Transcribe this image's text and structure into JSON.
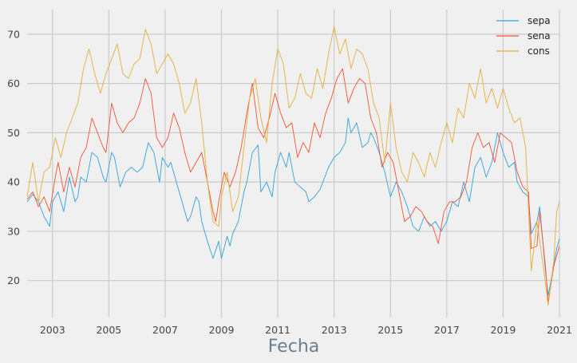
{
  "chart_data": {
    "type": "line",
    "title": "",
    "xlabel": "Fecha",
    "ylabel": "",
    "xlim": [
      2002.1,
      2021.0
    ],
    "ylim": [
      12.5,
      75
    ],
    "grid": true,
    "legend": "top-right",
    "xticks": [
      2003,
      2005,
      2007,
      2009,
      2011,
      2013,
      2015,
      2017,
      2019,
      2021
    ],
    "yticks": [
      20,
      30,
      40,
      50,
      60,
      70
    ],
    "series": [
      {
        "name": "sepa",
        "color": "#30a2da",
        "points": [
          [
            2002.1,
            36
          ],
          [
            2002.3,
            37.5
          ],
          [
            2002.5,
            36
          ],
          [
            2002.7,
            33
          ],
          [
            2002.9,
            31
          ],
          [
            2003.0,
            36
          ],
          [
            2003.2,
            38
          ],
          [
            2003.4,
            34
          ],
          [
            2003.6,
            41
          ],
          [
            2003.8,
            36
          ],
          [
            2003.9,
            37
          ],
          [
            2004.0,
            41
          ],
          [
            2004.2,
            40
          ],
          [
            2004.4,
            46
          ],
          [
            2004.6,
            45
          ],
          [
            2004.8,
            41
          ],
          [
            2004.9,
            40
          ],
          [
            2005.1,
            46
          ],
          [
            2005.2,
            45
          ],
          [
            2005.4,
            39
          ],
          [
            2005.6,
            42
          ],
          [
            2005.8,
            43
          ],
          [
            2006.0,
            42
          ],
          [
            2006.2,
            43
          ],
          [
            2006.4,
            48
          ],
          [
            2006.6,
            46
          ],
          [
            2006.8,
            40
          ],
          [
            2006.9,
            45
          ],
          [
            2007.1,
            43
          ],
          [
            2007.2,
            44
          ],
          [
            2007.4,
            40
          ],
          [
            2007.6,
            36
          ],
          [
            2007.8,
            32
          ],
          [
            2007.9,
            33
          ],
          [
            2008.1,
            37
          ],
          [
            2008.2,
            36
          ],
          [
            2008.3,
            32
          ],
          [
            2008.5,
            28
          ],
          [
            2008.7,
            24.5
          ],
          [
            2008.9,
            28
          ],
          [
            2009.0,
            24.5
          ],
          [
            2009.2,
            29
          ],
          [
            2009.3,
            27
          ],
          [
            2009.4,
            29.5
          ],
          [
            2009.6,
            32
          ],
          [
            2009.8,
            38
          ],
          [
            2009.9,
            40
          ],
          [
            2010.1,
            46
          ],
          [
            2010.3,
            47.5
          ],
          [
            2010.4,
            38
          ],
          [
            2010.6,
            40
          ],
          [
            2010.8,
            37
          ],
          [
            2010.9,
            42
          ],
          [
            2011.1,
            46
          ],
          [
            2011.3,
            43
          ],
          [
            2011.4,
            46
          ],
          [
            2011.6,
            40
          ],
          [
            2011.8,
            39
          ],
          [
            2012.0,
            38
          ],
          [
            2012.1,
            36
          ],
          [
            2012.3,
            37
          ],
          [
            2012.5,
            38.5
          ],
          [
            2012.6,
            40
          ],
          [
            2012.8,
            43
          ],
          [
            2013.0,
            45
          ],
          [
            2013.2,
            46
          ],
          [
            2013.4,
            48
          ],
          [
            2013.5,
            53
          ],
          [
            2013.6,
            50
          ],
          [
            2013.8,
            52
          ],
          [
            2014.0,
            47
          ],
          [
            2014.2,
            48
          ],
          [
            2014.3,
            50
          ],
          [
            2014.4,
            49
          ],
          [
            2014.6,
            46
          ],
          [
            2014.8,
            42
          ],
          [
            2015.0,
            37
          ],
          [
            2015.2,
            40
          ],
          [
            2015.4,
            38
          ],
          [
            2015.6,
            35
          ],
          [
            2015.8,
            31
          ],
          [
            2016.0,
            30
          ],
          [
            2016.2,
            33
          ],
          [
            2016.4,
            31
          ],
          [
            2016.6,
            32
          ],
          [
            2016.8,
            30
          ],
          [
            2017.0,
            32
          ],
          [
            2017.2,
            36
          ],
          [
            2017.4,
            35
          ],
          [
            2017.6,
            40
          ],
          [
            2017.8,
            36
          ],
          [
            2018.0,
            43
          ],
          [
            2018.2,
            45
          ],
          [
            2018.4,
            41
          ],
          [
            2018.6,
            44
          ],
          [
            2018.8,
            50
          ],
          [
            2019.0,
            46
          ],
          [
            2019.2,
            43
          ],
          [
            2019.4,
            44
          ],
          [
            2019.5,
            40
          ],
          [
            2019.7,
            38
          ],
          [
            2019.9,
            37
          ],
          [
            2020.0,
            29.5
          ],
          [
            2020.2,
            32
          ],
          [
            2020.3,
            35
          ],
          [
            2020.5,
            22
          ],
          [
            2020.6,
            17
          ],
          [
            2020.8,
            23
          ],
          [
            2020.9,
            26.5
          ],
          [
            2021.0,
            28.5
          ]
        ]
      },
      {
        "name": "sena",
        "color": "#fc4f30",
        "points": [
          [
            2002.1,
            36.5
          ],
          [
            2002.3,
            38
          ],
          [
            2002.5,
            35
          ],
          [
            2002.7,
            37
          ],
          [
            2002.9,
            34
          ],
          [
            2003.1,
            41
          ],
          [
            2003.2,
            44
          ],
          [
            2003.4,
            38
          ],
          [
            2003.6,
            43
          ],
          [
            2003.8,
            39
          ],
          [
            2004.0,
            45
          ],
          [
            2004.2,
            47
          ],
          [
            2004.4,
            53
          ],
          [
            2004.6,
            50
          ],
          [
            2004.8,
            47
          ],
          [
            2004.9,
            46
          ],
          [
            2005.1,
            56
          ],
          [
            2005.3,
            52
          ],
          [
            2005.5,
            50
          ],
          [
            2005.7,
            52
          ],
          [
            2005.9,
            53
          ],
          [
            2006.1,
            56
          ],
          [
            2006.3,
            61
          ],
          [
            2006.5,
            58
          ],
          [
            2006.7,
            49
          ],
          [
            2006.9,
            47
          ],
          [
            2007.1,
            49
          ],
          [
            2007.3,
            54
          ],
          [
            2007.5,
            51
          ],
          [
            2007.7,
            46
          ],
          [
            2007.9,
            42
          ],
          [
            2008.1,
            44
          ],
          [
            2008.3,
            46
          ],
          [
            2008.5,
            40
          ],
          [
            2008.7,
            34
          ],
          [
            2008.8,
            32
          ],
          [
            2008.9,
            36
          ],
          [
            2009.1,
            42
          ],
          [
            2009.3,
            39
          ],
          [
            2009.5,
            42
          ],
          [
            2009.7,
            47
          ],
          [
            2009.9,
            54
          ],
          [
            2010.1,
            60
          ],
          [
            2010.3,
            51
          ],
          [
            2010.5,
            49
          ],
          [
            2010.7,
            53
          ],
          [
            2010.9,
            58
          ],
          [
            2011.1,
            54
          ],
          [
            2011.3,
            51
          ],
          [
            2011.5,
            52
          ],
          [
            2011.7,
            45
          ],
          [
            2011.9,
            48
          ],
          [
            2012.1,
            46
          ],
          [
            2012.3,
            52
          ],
          [
            2012.5,
            49
          ],
          [
            2012.7,
            54
          ],
          [
            2012.9,
            57
          ],
          [
            2013.1,
            61
          ],
          [
            2013.3,
            63
          ],
          [
            2013.5,
            56
          ],
          [
            2013.7,
            59
          ],
          [
            2013.9,
            61
          ],
          [
            2014.1,
            60
          ],
          [
            2014.3,
            53
          ],
          [
            2014.5,
            50
          ],
          [
            2014.7,
            43
          ],
          [
            2014.9,
            46
          ],
          [
            2015.1,
            44
          ],
          [
            2015.3,
            38
          ],
          [
            2015.5,
            32
          ],
          [
            2015.7,
            33
          ],
          [
            2015.9,
            35
          ],
          [
            2016.1,
            34
          ],
          [
            2016.3,
            32
          ],
          [
            2016.5,
            31
          ],
          [
            2016.7,
            27.5
          ],
          [
            2016.9,
            34
          ],
          [
            2017.1,
            36
          ],
          [
            2017.3,
            36
          ],
          [
            2017.5,
            37
          ],
          [
            2017.7,
            40
          ],
          [
            2017.9,
            47
          ],
          [
            2018.1,
            50
          ],
          [
            2018.3,
            47
          ],
          [
            2018.5,
            48
          ],
          [
            2018.7,
            44
          ],
          [
            2018.9,
            50
          ],
          [
            2019.1,
            49
          ],
          [
            2019.3,
            48
          ],
          [
            2019.5,
            42
          ],
          [
            2019.7,
            39
          ],
          [
            2019.9,
            38
          ],
          [
            2020.0,
            26.5
          ],
          [
            2020.2,
            27
          ],
          [
            2020.3,
            34
          ],
          [
            2020.5,
            23
          ],
          [
            2020.6,
            15.5
          ],
          [
            2020.8,
            23
          ],
          [
            2021.0,
            27
          ]
        ]
      },
      {
        "name": "cons",
        "color": "#e5ae38",
        "points": [
          [
            2002.1,
            37
          ],
          [
            2002.3,
            44
          ],
          [
            2002.5,
            36
          ],
          [
            2002.7,
            42
          ],
          [
            2002.9,
            43
          ],
          [
            2003.1,
            49
          ],
          [
            2003.3,
            45
          ],
          [
            2003.5,
            50
          ],
          [
            2003.7,
            53
          ],
          [
            2003.9,
            56
          ],
          [
            2004.1,
            63
          ],
          [
            2004.3,
            67
          ],
          [
            2004.5,
            62
          ],
          [
            2004.7,
            58
          ],
          [
            2004.9,
            62
          ],
          [
            2005.1,
            65
          ],
          [
            2005.3,
            68
          ],
          [
            2005.5,
            62
          ],
          [
            2005.7,
            61
          ],
          [
            2005.9,
            64
          ],
          [
            2006.1,
            65
          ],
          [
            2006.3,
            71
          ],
          [
            2006.5,
            68
          ],
          [
            2006.7,
            62
          ],
          [
            2006.9,
            64
          ],
          [
            2007.1,
            66
          ],
          [
            2007.3,
            64
          ],
          [
            2007.5,
            60
          ],
          [
            2007.7,
            54
          ],
          [
            2007.9,
            56
          ],
          [
            2008.1,
            61
          ],
          [
            2008.3,
            52
          ],
          [
            2008.5,
            40
          ],
          [
            2008.7,
            32
          ],
          [
            2008.9,
            31
          ],
          [
            2009.0,
            37
          ],
          [
            2009.2,
            42
          ],
          [
            2009.4,
            34
          ],
          [
            2009.6,
            37
          ],
          [
            2009.8,
            47
          ],
          [
            2010.0,
            57
          ],
          [
            2010.2,
            61
          ],
          [
            2010.4,
            53
          ],
          [
            2010.6,
            48
          ],
          [
            2010.8,
            60
          ],
          [
            2011.0,
            67
          ],
          [
            2011.2,
            64
          ],
          [
            2011.4,
            55
          ],
          [
            2011.6,
            57
          ],
          [
            2011.8,
            62
          ],
          [
            2012.0,
            58
          ],
          [
            2012.2,
            57
          ],
          [
            2012.4,
            63
          ],
          [
            2012.6,
            59
          ],
          [
            2012.8,
            66
          ],
          [
            2013.0,
            71.5
          ],
          [
            2013.2,
            66
          ],
          [
            2013.4,
            69
          ],
          [
            2013.6,
            63
          ],
          [
            2013.8,
            67
          ],
          [
            2014.0,
            66
          ],
          [
            2014.2,
            63
          ],
          [
            2014.4,
            56
          ],
          [
            2014.6,
            53
          ],
          [
            2014.8,
            44
          ],
          [
            2015.0,
            56
          ],
          [
            2015.2,
            47
          ],
          [
            2015.4,
            42
          ],
          [
            2015.6,
            40
          ],
          [
            2015.8,
            46
          ],
          [
            2016.0,
            44
          ],
          [
            2016.2,
            41
          ],
          [
            2016.4,
            46
          ],
          [
            2016.6,
            43
          ],
          [
            2016.8,
            48
          ],
          [
            2017.0,
            52
          ],
          [
            2017.2,
            48
          ],
          [
            2017.4,
            55
          ],
          [
            2017.6,
            53
          ],
          [
            2017.8,
            60
          ],
          [
            2018.0,
            57
          ],
          [
            2018.2,
            63
          ],
          [
            2018.4,
            56
          ],
          [
            2018.6,
            59
          ],
          [
            2018.8,
            55
          ],
          [
            2019.0,
            59
          ],
          [
            2019.2,
            55
          ],
          [
            2019.4,
            52
          ],
          [
            2019.6,
            53
          ],
          [
            2019.8,
            47
          ],
          [
            2020.0,
            22
          ],
          [
            2020.2,
            32
          ],
          [
            2020.4,
            24
          ],
          [
            2020.6,
            15
          ],
          [
            2020.8,
            24
          ],
          [
            2020.9,
            34
          ],
          [
            2021.0,
            36
          ]
        ]
      }
    ]
  }
}
